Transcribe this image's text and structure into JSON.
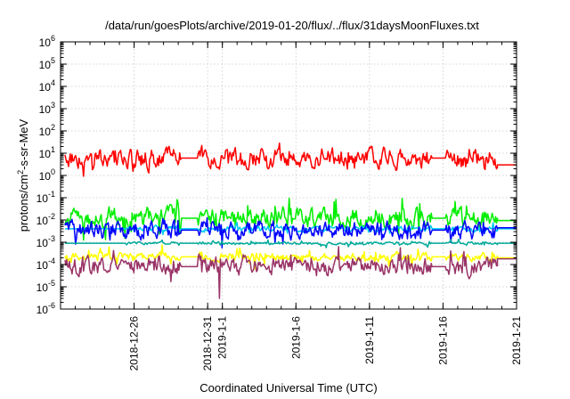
{
  "chart_data": {
    "type": "line",
    "title": "/data/run/goesPlots/archive/2019-01-20/flux/../flux/31daysMoonFluxes.txt",
    "xlabel": "Coordinated Universal Time (UTC)",
    "ylabel_main": "protons/cm",
    "ylabel_sup": "2",
    "ylabel_tail": "-s-sr-MeV",
    "yscale": "log",
    "ylim": [
      1e-06,
      1000000.0
    ],
    "xlim": [
      "2018-12-21",
      "2019-01-21"
    ],
    "grid": true,
    "y_ticks": [
      {
        "base": "10",
        "exp": "-6",
        "value": 1e-06
      },
      {
        "base": "10",
        "exp": "-5",
        "value": 1e-05
      },
      {
        "base": "10",
        "exp": "-4",
        "value": 0.0001
      },
      {
        "base": "10",
        "exp": "-3",
        "value": 0.001
      },
      {
        "base": "10",
        "exp": "-2",
        "value": 0.01
      },
      {
        "base": "10",
        "exp": "-1",
        "value": 0.1
      },
      {
        "base": "10",
        "exp": "0",
        "value": 1
      },
      {
        "base": "10",
        "exp": "1",
        "value": 10
      },
      {
        "base": "10",
        "exp": "2",
        "value": 100
      },
      {
        "base": "10",
        "exp": "3",
        "value": 1000
      },
      {
        "base": "10",
        "exp": "4",
        "value": 10000
      },
      {
        "base": "10",
        "exp": "5",
        "value": 100000
      },
      {
        "base": "10",
        "exp": "6",
        "value": 1000000
      }
    ],
    "x_ticks": [
      {
        "label": "2018-12-26",
        "day": 5
      },
      {
        "label": "2018-12-31",
        "day": 10
      },
      {
        "label": "2019-1-1",
        "day": 11
      },
      {
        "label": "2019-1-6",
        "day": 16
      },
      {
        "label": "2019-1-11",
        "day": 21
      },
      {
        "label": "2019-1-16",
        "day": 26
      },
      {
        "label": "2019-1-21",
        "day": 31
      }
    ],
    "series": [
      {
        "color": "#ff0000",
        "center": 6.0,
        "spread": 0.35,
        "spike": 0.25,
        "flat_segments": [
          [
            8.2,
            9.3
          ],
          [
            25.2,
            26.2
          ]
        ],
        "end_value": 3.0
      },
      {
        "color": "#00ee00",
        "center": 0.012,
        "spread": 0.35,
        "spike": 0.55,
        "flat_segments": [
          [
            8.2,
            9.3
          ],
          [
            25.2,
            26.2
          ]
        ],
        "end_value": 0.0095
      },
      {
        "color": "#00ccee",
        "center": 0.004,
        "spread": 0.1,
        "spike": 0.2,
        "flat_segments": [
          [
            0.1,
            4.4
          ],
          [
            8.2,
            9.3
          ],
          [
            25.2,
            26.2
          ]
        ],
        "end_value": 0.004
      },
      {
        "color": "#0000ff",
        "center": 0.0035,
        "spread": 0.3,
        "spike": 0.35,
        "flat_segments": [
          [
            8.2,
            9.3
          ],
          [
            25.2,
            26.2
          ]
        ],
        "end_value": 0.0045
      },
      {
        "color": "#00aa99",
        "center": 0.0009,
        "spread": 0.05,
        "spike": 0.1,
        "flat_segments": [
          [
            0.1,
            4.4
          ],
          [
            8.2,
            9.3
          ],
          [
            25.2,
            26.2
          ]
        ],
        "end_value": 0.0009
      },
      {
        "color": "#ffff00",
        "center": 0.00022,
        "spread": 0.15,
        "spike": 0.3,
        "flat_segments": [
          [
            8.2,
            9.3
          ],
          [
            25.2,
            26.2
          ]
        ],
        "end_value": 0.0002
      },
      {
        "color": "#993366",
        "center": 8e-05,
        "spread": 0.3,
        "spike": 0.45,
        "flat_segments": [
          [
            8.2,
            9.3
          ],
          [
            25.2,
            26.2
          ]
        ],
        "end_value": 0.00018,
        "dip": {
          "day": 10.8,
          "value": 3e-06
        }
      }
    ]
  }
}
